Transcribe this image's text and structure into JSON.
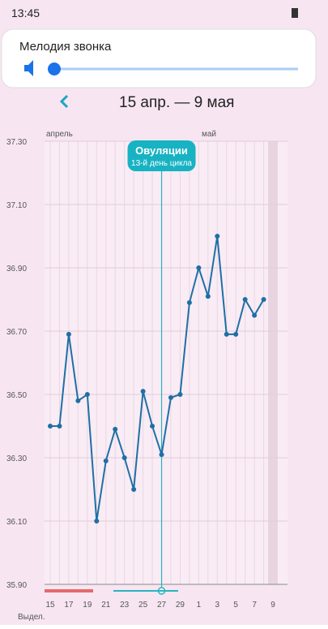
{
  "status_bar": {
    "time": "13:45"
  },
  "volume_panel": {
    "title": "Мелодия звонка"
  },
  "header": {
    "title": "15 апр. — 9 мая"
  },
  "chart_data": {
    "type": "line",
    "categories": [
      "15",
      null,
      "17",
      null,
      "19",
      null,
      "21",
      null,
      "23",
      null,
      "25",
      null,
      "27",
      null,
      "29",
      null,
      "1",
      null,
      "3",
      null,
      "5",
      null,
      "7",
      null,
      "9"
    ],
    "series": [
      {
        "name": null,
        "color": "#1f6fa5",
        "values": [
          36.4,
          36.4,
          36.69,
          36.48,
          36.5,
          36.1,
          36.29,
          36.39,
          36.3,
          36.2,
          36.51,
          36.4,
          36.31,
          36.49,
          36.5,
          36.79,
          36.9,
          36.81,
          37.0,
          36.69,
          36.69,
          36.8,
          36.75,
          36.8,
          null
        ]
      }
    ],
    "ylim": [
      35.9,
      37.3
    ],
    "yticks": [
      {
        "value": 35.9,
        "label": "35.90"
      },
      {
        "value": 36.1,
        "label": "36.10"
      },
      {
        "value": 36.3,
        "label": "36.30"
      },
      {
        "value": 36.5,
        "label": "36.50"
      },
      {
        "value": 36.7,
        "label": "36.70"
      },
      {
        "value": 36.9,
        "label": "36.90"
      },
      {
        "value": 37.1,
        "label": "37.10"
      },
      {
        "value": 37.3,
        "label": "37.30"
      }
    ],
    "grid": true,
    "month_labels": [
      "апрель",
      "май"
    ],
    "annotation": {
      "title": "Овуляции",
      "subtitle": "13-й день цикла"
    },
    "bottom_label": "Выдел."
  }
}
